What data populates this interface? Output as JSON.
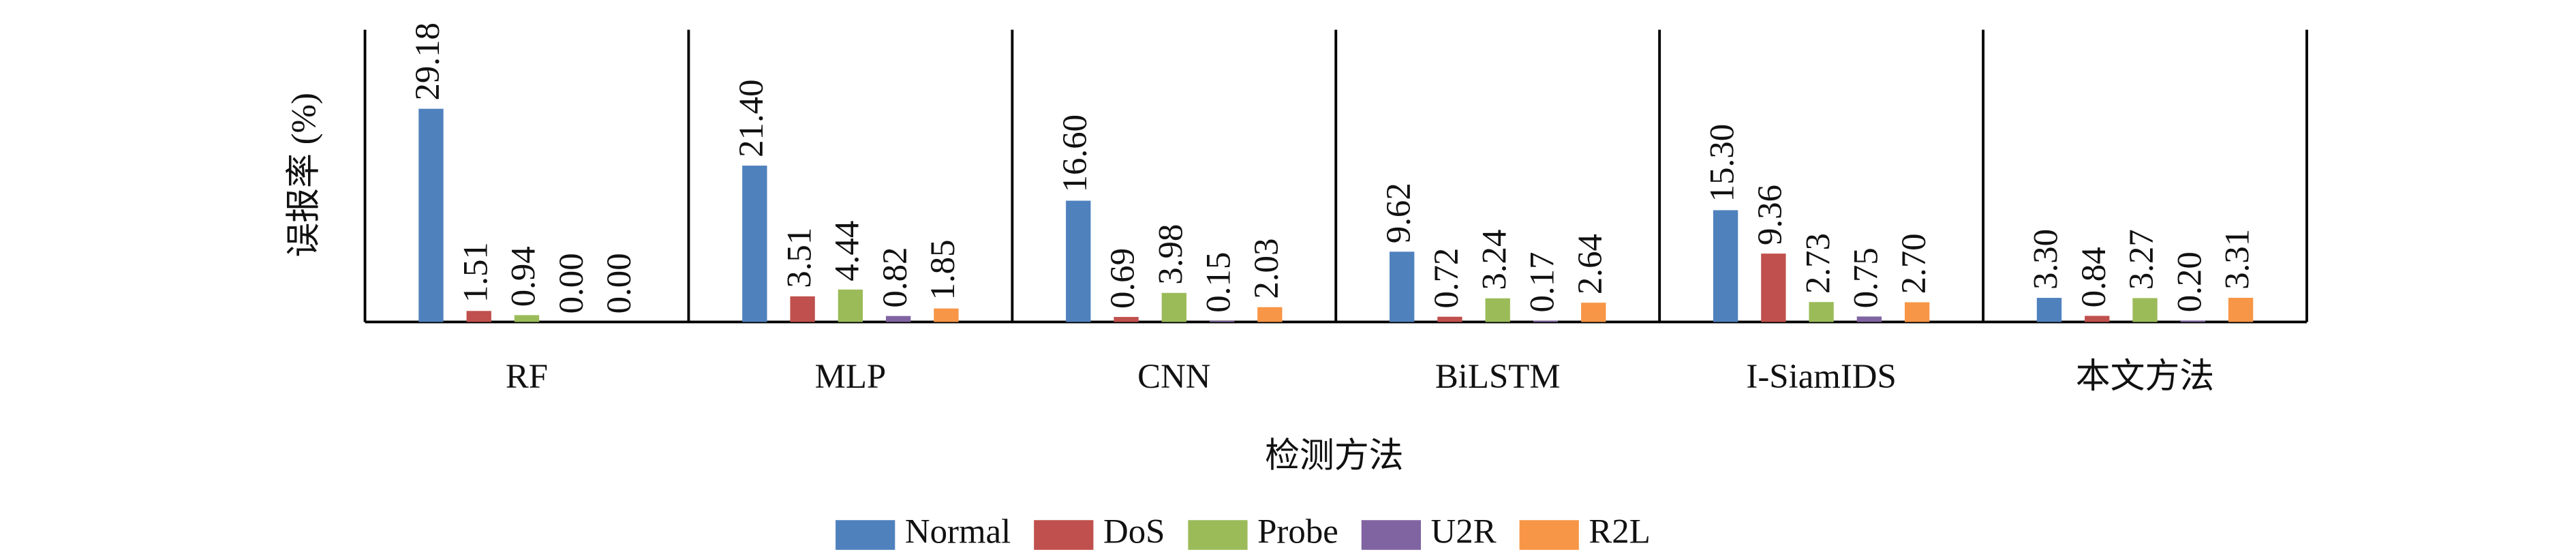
{
  "chart_data": {
    "type": "bar",
    "y_label": "误报率 (%)",
    "x_label": "检测方法",
    "categories": [
      "RF",
      "MLP",
      "CNN",
      "BiLSTM",
      "I-SiamIDS",
      "本文方法"
    ],
    "ylim": [
      0,
      40
    ],
    "legend": "bottom",
    "series": [
      {
        "name": "Normal",
        "color": "#4f81bd",
        "values": [
          29.18,
          21.4,
          16.6,
          9.62,
          15.3,
          3.3
        ],
        "value_labels": [
          "29.18",
          "21.40",
          "16.60",
          "9.62",
          "15.30",
          "3.30"
        ]
      },
      {
        "name": "DoS",
        "color": "#c0504d",
        "values": [
          1.51,
          3.51,
          0.69,
          0.72,
          9.36,
          0.84
        ],
        "value_labels": [
          "1.51",
          "3.51",
          "0.69",
          "0.72",
          "9.36",
          "0.84"
        ]
      },
      {
        "name": "Probe",
        "color": "#9bbb59",
        "values": [
          0.94,
          4.44,
          3.98,
          3.24,
          2.73,
          3.27
        ],
        "value_labels": [
          "0.94",
          "4.44",
          "3.98",
          "3.24",
          "2.73",
          "3.27"
        ]
      },
      {
        "name": "U2R",
        "color": "#8064a2",
        "values": [
          0,
          0.82,
          0.15,
          0.17,
          0.75,
          0.2
        ],
        "value_labels": [
          "0.00",
          "0.82",
          "0.15",
          "0.17",
          "0.75",
          "0.20"
        ]
      },
      {
        "name": "R2L",
        "color": "#f79646",
        "values": [
          0,
          1.85,
          2.03,
          2.64,
          2.7,
          3.31
        ],
        "value_labels": [
          "0.00",
          "1.85",
          "2.03",
          "2.64",
          "2.70",
          "3.31"
        ]
      }
    ]
  }
}
